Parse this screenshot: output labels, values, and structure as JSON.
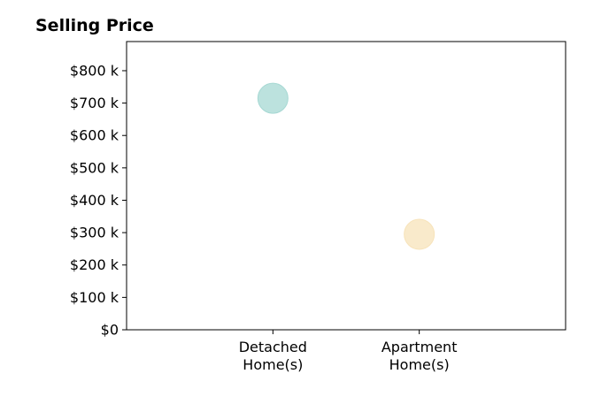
{
  "chart_data": {
    "type": "scatter",
    "title": "Selling Price",
    "xlabel": "",
    "ylabel": "",
    "categories": [
      "Detached\nHome(s)",
      "Apartment\nHome(s)"
    ],
    "series": [
      {
        "category": "Detached\nHome(s)",
        "value": 715,
        "color": "#a6d8d3"
      },
      {
        "category": "Apartment\nHome(s)",
        "value": 295,
        "color": "#f7e3ba"
      }
    ],
    "ylim": [
      0,
      890
    ],
    "xlim": [
      -1,
      2
    ],
    "yticks": [
      0,
      100,
      200,
      300,
      400,
      500,
      600,
      700,
      800
    ],
    "ytick_labels": [
      "$0",
      "$100 k",
      "$200 k",
      "$300 k",
      "$400 k",
      "$500 k",
      "$600 k",
      "$700 k",
      "$800 k"
    ],
    "grid": false,
    "legend": "none"
  }
}
